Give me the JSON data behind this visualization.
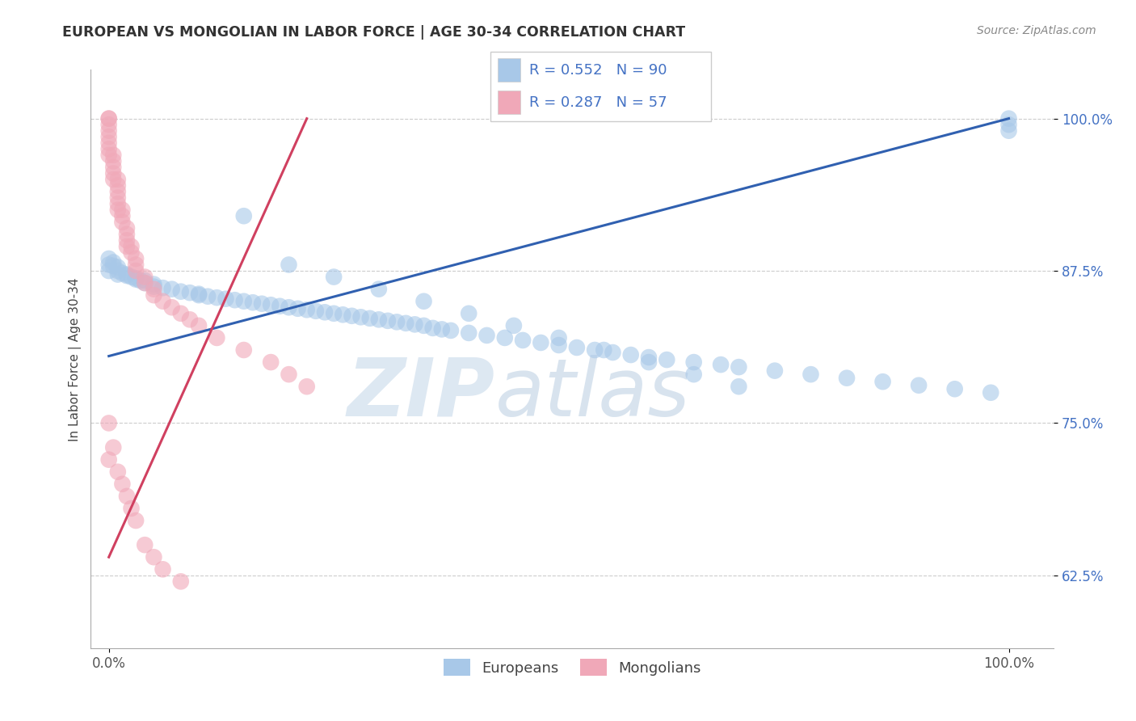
{
  "title": "EUROPEAN VS MONGOLIAN IN LABOR FORCE | AGE 30-34 CORRELATION CHART",
  "source": "Source: ZipAtlas.com",
  "ylabel": "In Labor Force | Age 30-34",
  "xlim": [
    -0.02,
    1.05
  ],
  "ylim": [
    0.565,
    1.04
  ],
  "yticks": [
    0.625,
    0.75,
    0.875,
    1.0
  ],
  "ytick_labels": [
    "62.5%",
    "75.0%",
    "87.5%",
    "100.0%"
  ],
  "xtick_labels": [
    "0.0%",
    "100.0%"
  ],
  "watermark_zip": "ZIP",
  "watermark_atlas": "atlas",
  "legend_r_european": "0.552",
  "legend_n_european": "90",
  "legend_r_mongolian": "0.287",
  "legend_n_mongolian": "57",
  "european_color": "#a8c8e8",
  "mongolian_color": "#f0a8b8",
  "trendline_european_color": "#3060b0",
  "trendline_mongolian_color": "#d04060",
  "ytick_color": "#4472c4",
  "background_color": "#ffffff",
  "grid_color": "#cccccc",
  "title_color": "#333333",
  "source_color": "#888888",
  "eu_x": [
    0.0,
    0.0,
    0.0,
    0.005,
    0.005,
    0.01,
    0.01,
    0.01,
    0.015,
    0.02,
    0.02,
    0.025,
    0.03,
    0.03,
    0.035,
    0.04,
    0.04,
    0.05,
    0.05,
    0.06,
    0.07,
    0.08,
    0.09,
    0.1,
    0.1,
    0.11,
    0.12,
    0.13,
    0.14,
    0.15,
    0.16,
    0.17,
    0.18,
    0.19,
    0.2,
    0.21,
    0.22,
    0.23,
    0.24,
    0.25,
    0.26,
    0.27,
    0.28,
    0.29,
    0.3,
    0.31,
    0.32,
    0.33,
    0.34,
    0.35,
    0.36,
    0.37,
    0.38,
    0.4,
    0.42,
    0.44,
    0.46,
    0.48,
    0.5,
    0.52,
    0.54,
    0.56,
    0.58,
    0.6,
    0.62,
    0.65,
    0.68,
    0.7,
    0.74,
    0.78,
    0.82,
    0.86,
    0.9,
    0.94,
    0.98,
    1.0,
    1.0,
    1.0,
    0.15,
    0.2,
    0.25,
    0.3,
    0.35,
    0.4,
    0.45,
    0.5,
    0.55,
    0.6,
    0.65,
    0.7
  ],
  "eu_y": [
    0.875,
    0.88,
    0.885,
    0.882,
    0.879,
    0.878,
    0.875,
    0.872,
    0.873,
    0.872,
    0.871,
    0.87,
    0.869,
    0.868,
    0.867,
    0.867,
    0.865,
    0.864,
    0.862,
    0.861,
    0.86,
    0.858,
    0.857,
    0.856,
    0.855,
    0.854,
    0.853,
    0.852,
    0.851,
    0.85,
    0.849,
    0.848,
    0.847,
    0.846,
    0.845,
    0.844,
    0.843,
    0.842,
    0.841,
    0.84,
    0.839,
    0.838,
    0.837,
    0.836,
    0.835,
    0.834,
    0.833,
    0.832,
    0.831,
    0.83,
    0.828,
    0.827,
    0.826,
    0.824,
    0.822,
    0.82,
    0.818,
    0.816,
    0.814,
    0.812,
    0.81,
    0.808,
    0.806,
    0.804,
    0.802,
    0.8,
    0.798,
    0.796,
    0.793,
    0.79,
    0.787,
    0.784,
    0.781,
    0.778,
    0.775,
    1.0,
    0.995,
    0.99,
    0.92,
    0.88,
    0.87,
    0.86,
    0.85,
    0.84,
    0.83,
    0.82,
    0.81,
    0.8,
    0.79,
    0.78
  ],
  "mo_x": [
    0.0,
    0.0,
    0.0,
    0.0,
    0.0,
    0.0,
    0.0,
    0.0,
    0.005,
    0.005,
    0.005,
    0.005,
    0.005,
    0.01,
    0.01,
    0.01,
    0.01,
    0.01,
    0.01,
    0.015,
    0.015,
    0.015,
    0.02,
    0.02,
    0.02,
    0.02,
    0.025,
    0.025,
    0.03,
    0.03,
    0.03,
    0.04,
    0.04,
    0.05,
    0.05,
    0.06,
    0.07,
    0.08,
    0.09,
    0.1,
    0.12,
    0.15,
    0.18,
    0.2,
    0.22,
    0.0,
    0.0,
    0.005,
    0.01,
    0.015,
    0.02,
    0.025,
    0.03,
    0.04,
    0.05,
    0.06,
    0.08
  ],
  "mo_y": [
    1.0,
    1.0,
    0.995,
    0.99,
    0.985,
    0.98,
    0.975,
    0.97,
    0.97,
    0.965,
    0.96,
    0.955,
    0.95,
    0.95,
    0.945,
    0.94,
    0.935,
    0.93,
    0.925,
    0.925,
    0.92,
    0.915,
    0.91,
    0.905,
    0.9,
    0.895,
    0.895,
    0.89,
    0.885,
    0.88,
    0.875,
    0.87,
    0.865,
    0.86,
    0.855,
    0.85,
    0.845,
    0.84,
    0.835,
    0.83,
    0.82,
    0.81,
    0.8,
    0.79,
    0.78,
    0.75,
    0.72,
    0.73,
    0.71,
    0.7,
    0.69,
    0.68,
    0.67,
    0.65,
    0.64,
    0.63,
    0.62
  ],
  "trendline_eu_x0": 0.0,
  "trendline_eu_x1": 1.0,
  "trendline_eu_y0": 0.805,
  "trendline_eu_y1": 1.0,
  "trendline_mo_x0": 0.0,
  "trendline_mo_x1": 0.22,
  "trendline_mo_y0": 0.64,
  "trendline_mo_y1": 1.0
}
